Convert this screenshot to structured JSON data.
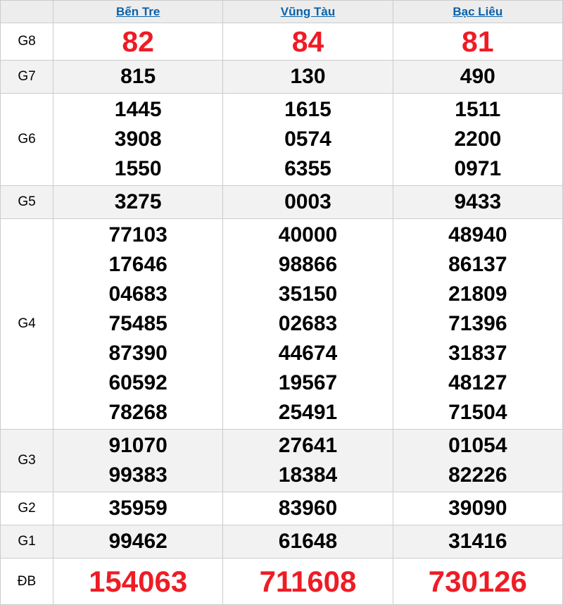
{
  "table": {
    "corner_label": "",
    "provinces": [
      "Bến Tre",
      "Vũng Tàu",
      "Bạc Liêu"
    ],
    "rows": [
      {
        "key": "g8",
        "label": "G8",
        "style": "red-large",
        "shaded": false,
        "cells": [
          [
            "82"
          ],
          [
            "84"
          ],
          [
            "81"
          ]
        ]
      },
      {
        "key": "g7",
        "label": "G7",
        "style": "normal",
        "shaded": true,
        "cells": [
          [
            "815"
          ],
          [
            "130"
          ],
          [
            "490"
          ]
        ]
      },
      {
        "key": "g6",
        "label": "G6",
        "style": "normal",
        "shaded": false,
        "cells": [
          [
            "1445",
            "3908",
            "1550"
          ],
          [
            "1615",
            "0574",
            "6355"
          ],
          [
            "1511",
            "2200",
            "0971"
          ]
        ]
      },
      {
        "key": "g5",
        "label": "G5",
        "style": "normal",
        "shaded": true,
        "cells": [
          [
            "3275"
          ],
          [
            "0003"
          ],
          [
            "9433"
          ]
        ]
      },
      {
        "key": "g4",
        "label": "G4",
        "style": "normal",
        "shaded": false,
        "cells": [
          [
            "77103",
            "17646",
            "04683",
            "75485",
            "87390",
            "60592",
            "78268"
          ],
          [
            "40000",
            "98866",
            "35150",
            "02683",
            "44674",
            "19567",
            "25491"
          ],
          [
            "48940",
            "86137",
            "21809",
            "71396",
            "31837",
            "48127",
            "71504"
          ]
        ]
      },
      {
        "key": "g3",
        "label": "G3",
        "style": "normal",
        "shaded": true,
        "cells": [
          [
            "91070",
            "99383"
          ],
          [
            "27641",
            "18384"
          ],
          [
            "01054",
            "82226"
          ]
        ]
      },
      {
        "key": "g2",
        "label": "G2",
        "style": "normal",
        "shaded": false,
        "cells": [
          [
            "35959"
          ],
          [
            "83960"
          ],
          [
            "39090"
          ]
        ]
      },
      {
        "key": "g1",
        "label": "G1",
        "style": "normal",
        "shaded": true,
        "cells": [
          [
            "99462"
          ],
          [
            "61648"
          ],
          [
            "31416"
          ]
        ]
      },
      {
        "key": "db",
        "label": "ĐB",
        "style": "red-xlarge",
        "shaded": false,
        "cells": [
          [
            "154063"
          ],
          [
            "711608"
          ],
          [
            "730126"
          ]
        ]
      }
    ],
    "colors": {
      "accent_blue": "#0a62a9",
      "prize_red": "#ee1c25",
      "shaded_row_bg": "#f2f2f2",
      "header_bg": "#ededed",
      "border": "#cccccc"
    }
  }
}
